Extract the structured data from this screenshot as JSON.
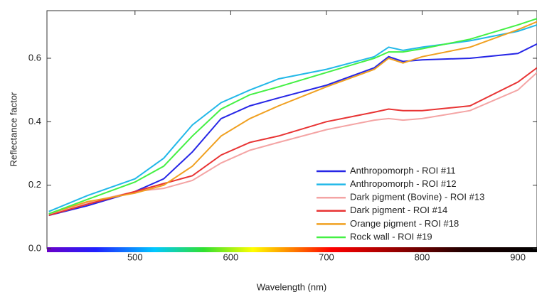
{
  "chart_data": {
    "type": "line",
    "x_label": "Wavelength (nm)",
    "y_label": "Reflectance factor",
    "x": [
      410,
      450,
      500,
      530,
      560,
      590,
      620,
      650,
      700,
      750,
      765,
      780,
      800,
      850,
      900,
      920
    ],
    "series": [
      {
        "name": "Anthropomorph - ROI #11",
        "color": "#2626e6",
        "values": [
          0.105,
          0.135,
          0.18,
          0.22,
          0.305,
          0.41,
          0.45,
          0.475,
          0.515,
          0.57,
          0.605,
          0.59,
          0.595,
          0.6,
          0.615,
          0.645
        ]
      },
      {
        "name": "Anthropomorph - ROI #12",
        "color": "#22b8e8",
        "values": [
          0.117,
          0.167,
          0.22,
          0.285,
          0.39,
          0.46,
          0.5,
          0.535,
          0.565,
          0.605,
          0.635,
          0.625,
          0.635,
          0.655,
          0.685,
          0.705
        ]
      },
      {
        "name": "Dark pigment (Bovine) - ROI #13",
        "color": "#f4a4a4",
        "values": [
          0.11,
          0.145,
          0.18,
          0.19,
          0.215,
          0.27,
          0.31,
          0.335,
          0.375,
          0.405,
          0.41,
          0.405,
          0.41,
          0.435,
          0.5,
          0.555
        ]
      },
      {
        "name": "Dark pigment - ROI #14",
        "color": "#e83434",
        "values": [
          0.105,
          0.14,
          0.18,
          0.205,
          0.23,
          0.295,
          0.335,
          0.355,
          0.4,
          0.43,
          0.44,
          0.435,
          0.435,
          0.45,
          0.525,
          0.57
        ]
      },
      {
        "name": "Orange pigment - ROI #18",
        "color": "#f0a020",
        "values": [
          0.11,
          0.148,
          0.175,
          0.2,
          0.26,
          0.355,
          0.41,
          0.45,
          0.51,
          0.565,
          0.6,
          0.585,
          0.605,
          0.635,
          0.69,
          0.715
        ]
      },
      {
        "name": "Rock wall - ROI #19",
        "color": "#44f044",
        "values": [
          0.11,
          0.155,
          0.21,
          0.26,
          0.355,
          0.44,
          0.485,
          0.51,
          0.555,
          0.6,
          0.62,
          0.62,
          0.63,
          0.66,
          0.705,
          0.725
        ]
      }
    ],
    "xlim": [
      408,
      920
    ],
    "ylim": [
      0,
      0.75
    ],
    "xticks": [
      500,
      600,
      700,
      800,
      900
    ],
    "yticks": [
      {
        "value": 0,
        "label": "0.0"
      },
      0.2,
      0.4,
      0.6
    ],
    "legend": "lower right"
  }
}
